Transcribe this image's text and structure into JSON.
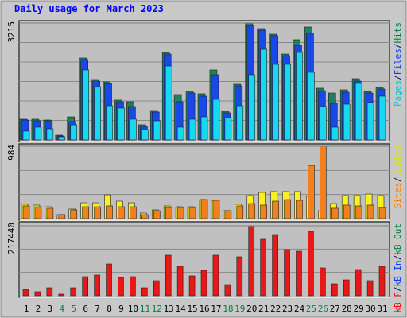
{
  "chart_data": [
    {
      "type": "bar",
      "title": "Daily usage for March 2023",
      "ylim": [
        0,
        3215
      ],
      "yticks": [
        3215
      ],
      "legend": [
        {
          "text": "Pages",
          "color": "#00c8e8"
        },
        {
          "text": "/",
          "color": "#000080"
        },
        {
          "text": "Files",
          "color": "#0040ff"
        },
        {
          "text": "/",
          "color": "#000080"
        },
        {
          "text": "Hits",
          "color": "#008040"
        }
      ],
      "series": [
        {
          "name": "Hits",
          "color": "#208060",
          "values": [
            569,
            569,
            547,
            131,
            634,
            2253,
            1662,
            1597,
            1094,
            1050,
            416,
            809,
            2406,
            1247,
            1334,
            1269,
            1925,
            787,
            1531,
            3215,
            3062,
            2909,
            2362,
            2756,
            3106,
            1422,
            1290,
            1378,
            1684,
            1334,
            1444
          ]
        },
        {
          "name": "Files",
          "color": "#1848e8",
          "values": [
            547,
            525,
            525,
            109,
            503,
            2209,
            1618,
            1553,
            1050,
            919,
            372,
            766,
            2362,
            1050,
            1290,
            1203,
            1794,
            744,
            1487,
            3149,
            3018,
            2866,
            2318,
            2603,
            2931,
            1356,
            1006,
            1312,
            1618,
            1290,
            1400
          ]
        },
        {
          "name": "Pages",
          "color": "#18d8f0",
          "values": [
            241,
            350,
            306,
            87,
            415,
            1925,
            1465,
            940,
            875,
            569,
            284,
            525,
            2034,
            350,
            569,
            634,
            1115,
            612,
            940,
            1794,
            2493,
            2078,
            2078,
            2406,
            1859,
            919,
            350,
            984,
            1553,
            1028,
            1203
          ]
        }
      ]
    },
    {
      "type": "bar",
      "ylim": [
        0,
        984
      ],
      "yticks": [
        984
      ],
      "legend": [
        {
          "text": "Sites",
          "color": "#ff8000"
        },
        {
          "text": "/",
          "color": "#000080"
        },
        {
          "text": "Visits",
          "color": "#e0e000"
        }
      ],
      "series": [
        {
          "name": "Visits",
          "color": "#f8f020",
          "values": [
            195,
            184,
            162,
            54,
            130,
            216,
            216,
            324,
            238,
            216,
            76,
            119,
            173,
            162,
            162,
            259,
            249,
            108,
            195,
            314,
            357,
            368,
            368,
            368,
            303,
            108,
            205,
            314,
            314,
            335,
            314
          ]
        },
        {
          "name": "Sites",
          "color": "#f08020",
          "values": [
            173,
            162,
            141,
            54,
            119,
            162,
            162,
            173,
            162,
            162,
            54,
            108,
            151,
            151,
            151,
            259,
            249,
            108,
            173,
            205,
            184,
            238,
            259,
            249,
            724,
            984,
            141,
            184,
            173,
            184,
            151
          ]
        }
      ]
    },
    {
      "type": "bar",
      "ylim": [
        0,
        217440
      ],
      "yticks": [
        217440
      ],
      "legend": [
        {
          "text": "kB F",
          "color": "#ff0000"
        },
        {
          "text": "/",
          "color": "#000080"
        },
        {
          "text": "kB In",
          "color": "#0040ff"
        },
        {
          "text": "/",
          "color": "#000080"
        },
        {
          "text": "kB Out",
          "color": "#008040"
        }
      ],
      "categories": [
        "1",
        "2",
        "3",
        "4",
        "5",
        "6",
        "7",
        "8",
        "9",
        "10",
        "11",
        "12",
        "13",
        "14",
        "15",
        "16",
        "17",
        "18",
        "19",
        "20",
        "21",
        "22",
        "23",
        "24",
        "25",
        "26",
        "27",
        "28",
        "29",
        "30",
        "31"
      ],
      "category_color": "#000000",
      "highlight_categories": [
        3,
        4,
        10,
        11,
        17,
        18,
        24,
        25
      ],
      "highlight_color": "#008040",
      "series": [
        {
          "name": "kB F",
          "color": "#e81818",
          "values": [
            19770,
            12360,
            24710,
            4940,
            24710,
            59300,
            64250,
            98840,
            56830,
            59300,
            24710,
            46950,
            126020,
            91430,
            61780,
            79070,
            126020,
            34590,
            121080,
            217440,
            175440,
            190270,
            143320,
            138380,
            200150,
            86490,
            37070,
            49420,
            81540,
            46950,
            91430
          ]
        }
      ]
    }
  ]
}
